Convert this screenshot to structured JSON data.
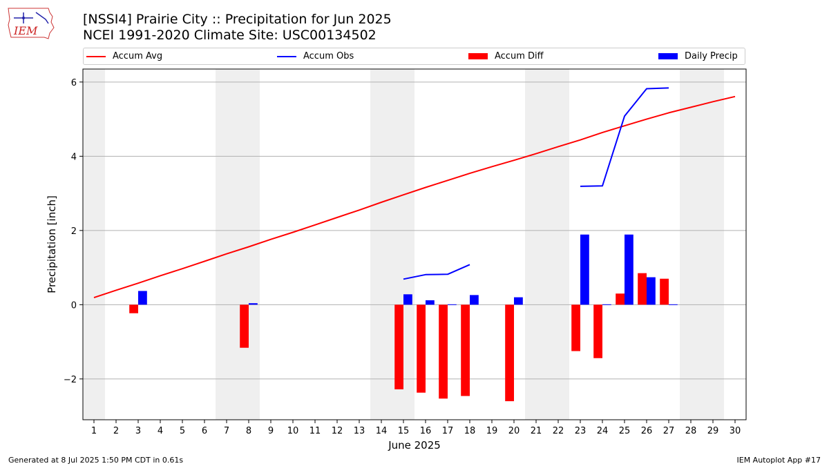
{
  "header": {
    "title": "[NSSI4] Prairie City :: Precipitation for Jun 2025",
    "subtitle": "NCEI 1991-2020 Climate Site: USC00134502",
    "logo_text": "IEM"
  },
  "legend": {
    "items": [
      {
        "label": "Accum Avg",
        "kind": "line",
        "color": "#ff0000"
      },
      {
        "label": "Accum Obs",
        "kind": "line",
        "color": "#0000ff"
      },
      {
        "label": "Accum Diff",
        "kind": "bar",
        "color": "#ff0000"
      },
      {
        "label": "Daily Precip",
        "kind": "bar",
        "color": "#0000ff"
      }
    ]
  },
  "footer": {
    "generated": "Generated at 8 Jul 2025 1:50 PM CDT in 0.61s",
    "app": "IEM Autoplot App #17"
  },
  "chart_data": {
    "type": "bar",
    "xlabel": "June 2025",
    "ylabel": "Precipitation [inch]",
    "x": [
      1,
      2,
      3,
      4,
      5,
      6,
      7,
      8,
      9,
      10,
      11,
      12,
      13,
      14,
      15,
      16,
      17,
      18,
      19,
      20,
      21,
      22,
      23,
      24,
      25,
      26,
      27,
      28,
      29,
      30
    ],
    "xlim": [
      0.5,
      30.5
    ],
    "ylim": [
      -3.1,
      6.35
    ],
    "yticks": [
      -2,
      0,
      2,
      4,
      6
    ],
    "ytick_labels": [
      "−2",
      "0",
      "2",
      "4",
      "6"
    ],
    "grid": "horizontal",
    "weekend_shading": [
      [
        0.5,
        1.5
      ],
      [
        6.5,
        8.5
      ],
      [
        13.5,
        15.5
      ],
      [
        20.5,
        22.5
      ],
      [
        27.5,
        29.5
      ]
    ],
    "colors": {
      "avg": "#ff0000",
      "obs": "#0000ff",
      "diff": "#ff0000",
      "daily": "#0000ff",
      "shade": "#efefef",
      "grid": "#b0b0b0"
    },
    "series": [
      {
        "name": "Accum Avg",
        "kind": "line",
        "values": [
          0.19,
          0.39,
          0.58,
          0.78,
          0.97,
          1.17,
          1.37,
          1.56,
          1.76,
          1.95,
          2.15,
          2.35,
          2.55,
          2.76,
          2.96,
          3.16,
          3.35,
          3.54,
          3.72,
          3.89,
          4.07,
          4.26,
          4.44,
          4.64,
          4.82,
          5.0,
          5.17,
          5.32,
          5.47,
          5.61
        ]
      },
      {
        "name": "Accum Obs",
        "kind": "line",
        "values": [
          null,
          null,
          null,
          null,
          null,
          null,
          null,
          null,
          null,
          null,
          null,
          null,
          null,
          null,
          0.69,
          0.81,
          0.82,
          1.08,
          null,
          null,
          null,
          null,
          3.19,
          3.2,
          5.08,
          5.82,
          5.84,
          null,
          null,
          null
        ]
      },
      {
        "name": "Accum Diff",
        "kind": "bar",
        "values": [
          null,
          null,
          -0.23,
          null,
          null,
          null,
          null,
          -1.16,
          null,
          null,
          null,
          null,
          null,
          null,
          -2.28,
          -2.37,
          -2.53,
          -2.46,
          null,
          -2.6,
          null,
          null,
          -1.25,
          -1.44,
          0.3,
          0.85,
          0.7,
          null,
          null,
          null
        ]
      },
      {
        "name": "Daily Precip",
        "kind": "bar",
        "values": [
          null,
          null,
          0.37,
          null,
          null,
          null,
          null,
          0.04,
          null,
          null,
          null,
          null,
          null,
          null,
          0.28,
          0.12,
          0.01,
          0.26,
          null,
          0.2,
          null,
          null,
          1.89,
          0.01,
          1.89,
          0.74,
          0.01,
          null,
          null,
          null
        ]
      }
    ]
  }
}
